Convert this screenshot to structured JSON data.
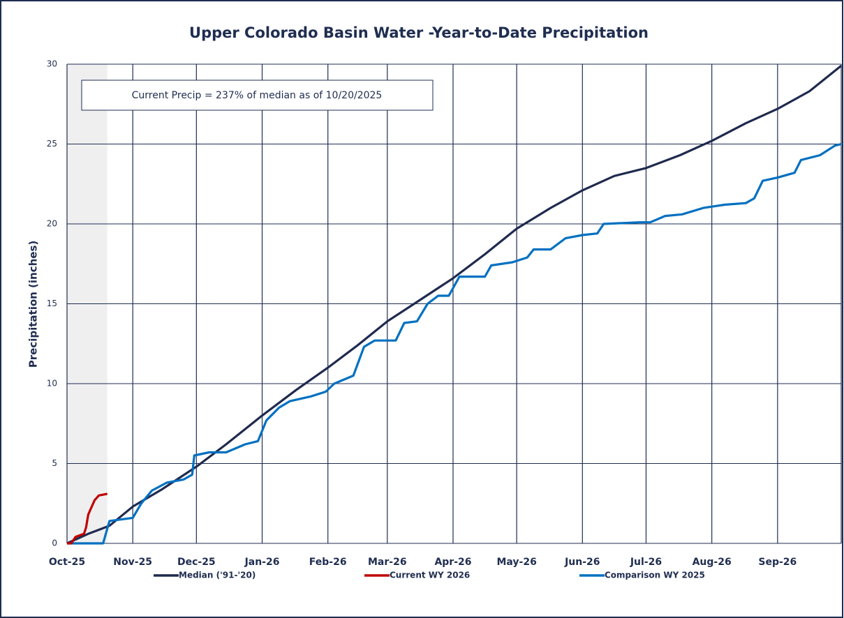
{
  "chart_data": {
    "type": "line",
    "title": "Upper Colorado Basin Water -Year-to-Date Precipitation",
    "y_label": "Precipitation (inches)",
    "annotation": "Current Precip = 237% of median as of 10/20/2025",
    "xlim": [
      0,
      365
    ],
    "xticks": [
      {
        "value": 0,
        "label": "Oct-25"
      },
      {
        "value": 31,
        "label": "Nov-25"
      },
      {
        "value": 61,
        "label": "Dec-25"
      },
      {
        "value": 92,
        "label": "Jan-26"
      },
      {
        "value": 123,
        "label": "Feb-26"
      },
      {
        "value": 151,
        "label": "Mar-26"
      },
      {
        "value": 182,
        "label": "Apr-26"
      },
      {
        "value": 212,
        "label": "May-26"
      },
      {
        "value": 243,
        "label": "Jun-26"
      },
      {
        "value": 273,
        "label": "Jul-26"
      },
      {
        "value": 304,
        "label": "Aug-26"
      },
      {
        "value": 335,
        "label": "Sep-26"
      }
    ],
    "ylim": [
      0,
      30
    ],
    "yticks": [
      0,
      5,
      10,
      15,
      20,
      25,
      30
    ],
    "grid": true,
    "legend": "bottom",
    "series": [
      {
        "name": "Median ('91-'20)",
        "color": "#1f2a4f",
        "x": [
          0,
          10,
          20,
          31,
          45,
          61,
          75,
          92,
          108,
          123,
          137,
          151,
          166,
          182,
          197,
          212,
          228,
          243,
          258,
          273,
          289,
          304,
          320,
          335,
          350,
          365
        ],
        "values": [
          0,
          0.6,
          1.1,
          2.3,
          3.4,
          4.8,
          6.2,
          8.0,
          9.6,
          11.0,
          12.4,
          13.9,
          15.2,
          16.6,
          18.1,
          19.7,
          21.0,
          22.1,
          23.0,
          23.5,
          24.3,
          25.2,
          26.3,
          27.2,
          28.3,
          29.9
        ]
      },
      {
        "name": "Current WY 2026",
        "color": "#c00000",
        "x": [
          0,
          2,
          4,
          6,
          8,
          9,
          10,
          11,
          13,
          15,
          19
        ],
        "values": [
          0,
          0,
          0.4,
          0.5,
          0.6,
          1.0,
          1.8,
          2.1,
          2.7,
          3.0,
          3.1
        ]
      },
      {
        "name": "Comparison WY 2025",
        "color": "#0070c0",
        "x": [
          0,
          17,
          20,
          31,
          35,
          40,
          47,
          55,
          59,
          60,
          67,
          75,
          84,
          90,
          94,
          100,
          105,
          115,
          122,
          126,
          135,
          140,
          145,
          155,
          159,
          165,
          170,
          175,
          180,
          185,
          197,
          200,
          210,
          217,
          220,
          228,
          235,
          243,
          250,
          253,
          270,
          275,
          282,
          290,
          300,
          310,
          320,
          324,
          328,
          335,
          343,
          346,
          355,
          362,
          365
        ],
        "values": [
          0,
          0,
          1.4,
          1.6,
          2.5,
          3.3,
          3.8,
          4.0,
          4.3,
          5.5,
          5.7,
          5.7,
          6.2,
          6.4,
          7.7,
          8.5,
          8.9,
          9.2,
          9.5,
          10.0,
          10.5,
          12.3,
          12.7,
          12.7,
          13.8,
          13.9,
          15.0,
          15.5,
          15.5,
          16.7,
          16.7,
          17.4,
          17.6,
          17.9,
          18.4,
          18.4,
          19.1,
          19.3,
          19.4,
          20.0,
          20.1,
          20.1,
          20.5,
          20.6,
          21.0,
          21.2,
          21.3,
          21.6,
          22.7,
          22.9,
          23.2,
          24.0,
          24.3,
          24.9,
          25.0
        ]
      }
    ]
  }
}
